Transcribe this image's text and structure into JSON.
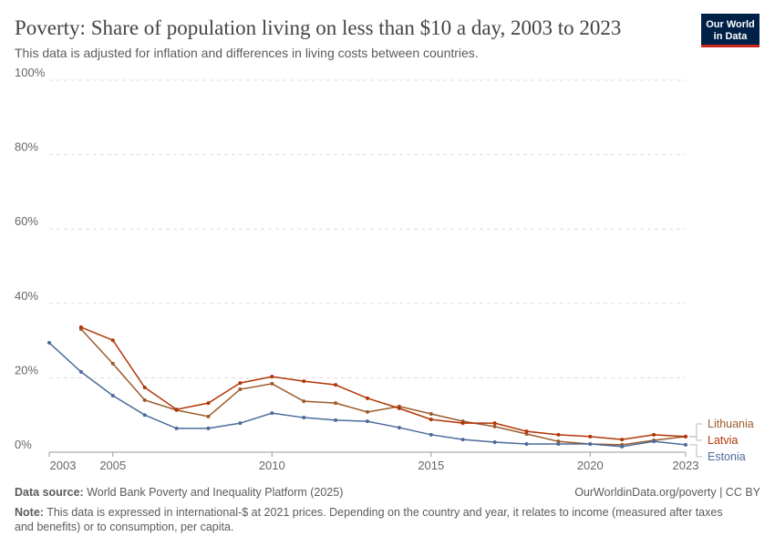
{
  "chart_data": {
    "type": "line",
    "title": "Poverty: Share of population living on less than $10 a day, 2003 to 2023",
    "subtitle": "This data is adjusted for inflation and differences in living costs between countries.",
    "logo": [
      "Our World",
      "in Data"
    ],
    "source_label": "Data source:",
    "source": "World Bank Poverty and Inequality Platform (2025)",
    "attribution": "OurWorldinData.org/poverty | CC BY",
    "note_label": "Note:",
    "note": "This data is expressed in international-$ at 2021 prices. Depending on the country and year, it relates to income (measured after taxes and benefits) or to consumption, per capita.",
    "x": [
      2003,
      2004,
      2005,
      2006,
      2007,
      2008,
      2009,
      2010,
      2011,
      2012,
      2013,
      2014,
      2015,
      2016,
      2017,
      2018,
      2019,
      2020,
      2021,
      2022,
      2023
    ],
    "series": [
      {
        "name": "Lithuania",
        "color": "#9c5b2b",
        "values": [
          null,
          33.1,
          23.8,
          14.0,
          11.3,
          9.6,
          16.9,
          18.4,
          13.7,
          13.2,
          10.8,
          12.3,
          10.3,
          8.3,
          6.9,
          4.9,
          2.9,
          2.2,
          2.0,
          3.2,
          4.2
        ]
      },
      {
        "name": "Latvia",
        "color": "#b13507",
        "values": [
          null,
          33.6,
          30.1,
          17.4,
          11.5,
          13.2,
          18.6,
          20.3,
          19.1,
          18.1,
          14.5,
          11.8,
          8.8,
          7.8,
          7.8,
          5.6,
          4.7,
          4.2,
          3.4,
          4.7,
          4.2
        ]
      },
      {
        "name": "Estonia",
        "color": "#4c6a9c",
        "values": [
          29.4,
          21.6,
          15.2,
          10.0,
          6.4,
          6.4,
          7.8,
          10.5,
          9.3,
          8.6,
          8.3,
          6.6,
          4.7,
          3.4,
          2.7,
          2.2,
          2.2,
          2.2,
          1.5,
          2.9,
          2.0
        ]
      }
    ],
    "xlim": [
      2003,
      2023
    ],
    "xticks": [
      2003,
      2005,
      2010,
      2015,
      2020,
      2023
    ],
    "ylim": [
      0,
      100
    ],
    "yticks": [
      {
        "value": 0,
        "label": "0%"
      },
      {
        "value": 20,
        "label": "20%"
      },
      {
        "value": 40,
        "label": "40%"
      },
      {
        "value": 60,
        "label": "60%"
      },
      {
        "value": 80,
        "label": "80%"
      },
      {
        "value": 100,
        "label": "100%"
      }
    ],
    "grid": true
  }
}
